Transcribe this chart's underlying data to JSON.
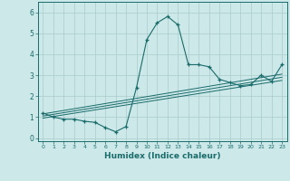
{
  "xlabel": "Humidex (Indice chaleur)",
  "bg_color": "#cce8e8",
  "grid_color": "#aacccc",
  "line_color": "#1a6b6b",
  "xlim": [
    -0.5,
    23.5
  ],
  "ylim": [
    -0.15,
    6.5
  ],
  "xticks": [
    0,
    1,
    2,
    3,
    4,
    5,
    6,
    7,
    8,
    9,
    10,
    11,
    12,
    13,
    14,
    15,
    16,
    17,
    18,
    19,
    20,
    21,
    22,
    23
  ],
  "yticks": [
    0,
    1,
    2,
    3,
    4,
    5,
    6
  ],
  "main_curve_x": [
    0,
    1,
    2,
    3,
    4,
    5,
    6,
    7,
    8,
    9,
    10,
    11,
    12,
    13,
    14,
    15,
    16,
    17,
    18,
    19,
    20,
    21,
    22,
    23
  ],
  "main_curve_y": [
    1.2,
    1.0,
    0.9,
    0.9,
    0.8,
    0.75,
    0.5,
    0.3,
    0.55,
    2.4,
    4.7,
    5.5,
    5.8,
    5.4,
    3.5,
    3.5,
    3.4,
    2.8,
    2.65,
    2.5,
    2.55,
    3.0,
    2.7,
    3.5
  ],
  "line1_x": [
    0,
    23
  ],
  "line1_y": [
    0.95,
    2.75
  ],
  "line2_x": [
    0,
    23
  ],
  "line2_y": [
    1.05,
    2.9
  ],
  "line3_x": [
    0,
    23
  ],
  "line3_y": [
    1.15,
    3.05
  ]
}
